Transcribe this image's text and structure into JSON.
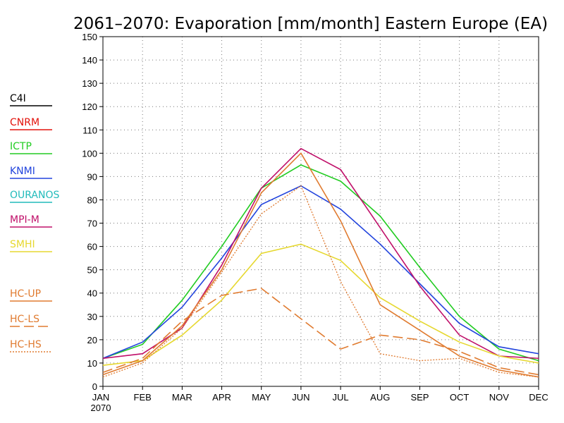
{
  "chart_data": {
    "type": "line",
    "title": "2061–2070: Evaporation [mm/month] Eastern Europe (EA)",
    "xlabel": "",
    "ylabel": "",
    "categories": [
      "JAN",
      "FEB",
      "MAR",
      "APR",
      "MAY",
      "JUN",
      "JUL",
      "AUG",
      "SEP",
      "OCT",
      "NOV",
      "DEC"
    ],
    "x_sublabel": "2070",
    "ylim": [
      0,
      150
    ],
    "yticks": [
      0,
      10,
      20,
      30,
      40,
      50,
      60,
      70,
      80,
      90,
      100,
      110,
      120,
      130,
      140,
      150
    ],
    "grid": true,
    "legend_position": "left",
    "series": [
      {
        "name": "C4I",
        "color": "#000000",
        "dash": "solid",
        "values": null
      },
      {
        "name": "CNRM",
        "color": "#e3120b",
        "dash": "solid",
        "values": null
      },
      {
        "name": "ICTP",
        "color": "#22cc22",
        "dash": "solid",
        "values": [
          12,
          18,
          37,
          60,
          85,
          95,
          88,
          73,
          51,
          30,
          16,
          11
        ]
      },
      {
        "name": "KNMI",
        "color": "#2244dd",
        "dash": "solid",
        "values": [
          12,
          19,
          34,
          55,
          78,
          86,
          76,
          61,
          44,
          27,
          17,
          14
        ]
      },
      {
        "name": "OURANOS",
        "color": "#22bbbb",
        "dash": "solid",
        "values": null
      },
      {
        "name": "MPI-M",
        "color": "#c0106a",
        "dash": "solid",
        "values": [
          12,
          14,
          25,
          52,
          85,
          102,
          93,
          68,
          43,
          22,
          13,
          12
        ]
      },
      {
        "name": "SMHI",
        "color": "#e6d830",
        "dash": "solid",
        "values": [
          9,
          11,
          22,
          37,
          57,
          61,
          54,
          38,
          28,
          19,
          13,
          10
        ]
      },
      {
        "name": "HC-UP",
        "color": "#e07b30",
        "dash": "solid",
        "values": [
          5,
          11,
          26,
          50,
          83,
          100,
          71,
          35,
          24,
          13,
          7,
          4
        ]
      },
      {
        "name": "HC-LS",
        "color": "#e07b30",
        "dash": "dashed",
        "values": [
          6,
          12,
          28,
          39,
          42,
          29,
          16,
          22,
          20,
          15,
          8,
          5
        ]
      },
      {
        "name": "HC-HS",
        "color": "#e07b30",
        "dash": "dotted",
        "values": [
          4,
          10,
          25,
          49,
          74,
          86,
          45,
          14,
          11,
          12,
          6,
          4
        ]
      }
    ]
  }
}
